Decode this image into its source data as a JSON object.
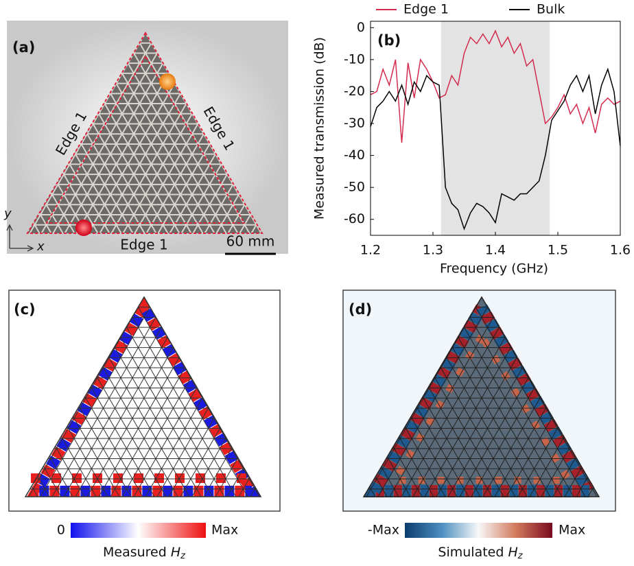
{
  "panel_a": {
    "label": "(a)",
    "edge_labels": [
      "Edge 1",
      "Edge 1",
      "Edge 1"
    ],
    "axis_y": "y",
    "axis_x": "x",
    "scale_bar": "60 mm"
  },
  "chart_data": {
    "type": "line",
    "label": "(b)",
    "x_label": "Frequency (GHz)",
    "y_label": "Measured transmission (dB)",
    "xlim": [
      1.2,
      1.6
    ],
    "xticks": [
      1.2,
      1.3,
      1.4,
      1.5,
      1.6
    ],
    "ylim": [
      -65,
      2
    ],
    "yticks": [
      0,
      -10,
      -20,
      -30,
      -40,
      -50,
      -60
    ],
    "shaded_band": [
      1.313,
      1.487
    ],
    "shaded_color": "#e3e3e3",
    "x": [
      1.2,
      1.21,
      1.22,
      1.23,
      1.24,
      1.25,
      1.26,
      1.27,
      1.28,
      1.29,
      1.3,
      1.31,
      1.32,
      1.33,
      1.34,
      1.35,
      1.36,
      1.37,
      1.38,
      1.39,
      1.4,
      1.41,
      1.42,
      1.43,
      1.44,
      1.45,
      1.46,
      1.47,
      1.48,
      1.49,
      1.5,
      1.51,
      1.52,
      1.53,
      1.54,
      1.55,
      1.56,
      1.57,
      1.58,
      1.59,
      1.6
    ],
    "series": [
      {
        "name": "Edge 1",
        "color": "#d42a4c",
        "values": [
          -21,
          -20,
          -13,
          -18,
          -10,
          -36,
          -11,
          -22,
          -10,
          -13,
          -17,
          -22,
          -21,
          -15,
          -18,
          -8,
          -3,
          -5,
          -2,
          -5,
          -1,
          -6,
          -3,
          -8,
          -5,
          -12,
          -10,
          -20,
          -30,
          -28,
          -25,
          -21,
          -27,
          -24,
          -30,
          -25,
          -33,
          -24,
          -22,
          -24,
          -23
        ]
      },
      {
        "name": "Bulk",
        "color": "#000000",
        "values": [
          -31,
          -25,
          -23,
          -20,
          -23,
          -18,
          -24,
          -17,
          -20,
          -15,
          -17,
          -18,
          -50,
          -55,
          -57,
          -63,
          -58,
          -55,
          -56,
          -58,
          -61,
          -52,
          -53,
          -54,
          -52,
          -52,
          -50,
          -48,
          -40,
          -29,
          -26,
          -23,
          -18,
          -15,
          -20,
          -15,
          -27,
          -18,
          -13,
          -20,
          -37
        ]
      }
    ]
  },
  "panel_c": {
    "label": "(c)",
    "colorbar_min": "0",
    "colorbar_max": "Max",
    "caption": "Measured",
    "symbol": "H",
    "subscript": "z"
  },
  "panel_d": {
    "label": "(d)",
    "colorbar_min": "-Max",
    "colorbar_max": "Max",
    "caption": "Simulated",
    "symbol": "H",
    "subscript": "z"
  }
}
